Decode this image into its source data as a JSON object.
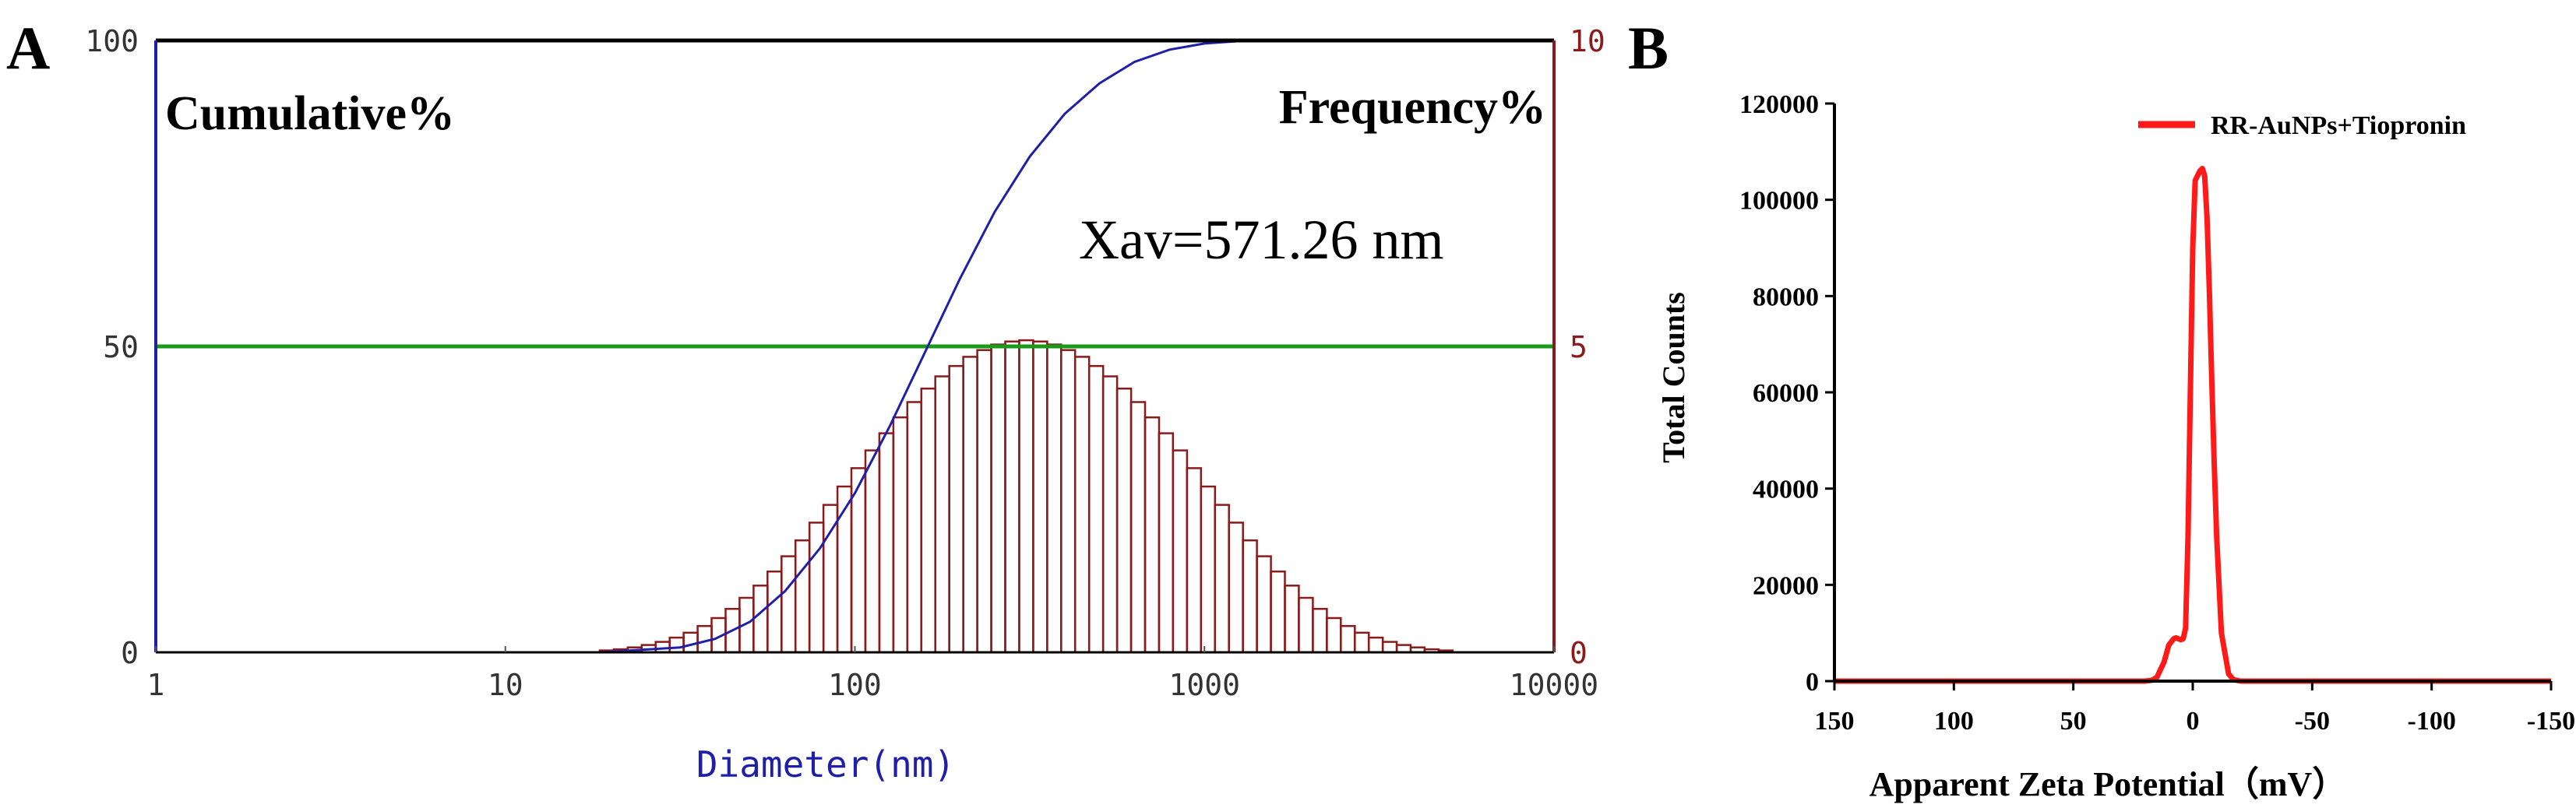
{
  "panels": {
    "a": {
      "letter": "A"
    },
    "b": {
      "letter": "B"
    }
  },
  "chart_data": [
    {
      "type": "bar",
      "panel": "A",
      "title": "",
      "xlabel": "Diameter(nm)",
      "ylabel_left": "Cumulative%",
      "ylabel_right": "Frequency%",
      "annotation": "Xav=571.26 nm",
      "x_scale": "log",
      "xlim": [
        1,
        10000
      ],
      "ylim_left": [
        0,
        100
      ],
      "ylim_right": [
        0,
        10
      ],
      "x_ticks": [
        1,
        10,
        100,
        1000,
        10000
      ],
      "x_tick_labels": [
        "1",
        "10",
        "100",
        "1000",
        "10000"
      ],
      "left_ticks": [
        0,
        50,
        100
      ],
      "left_tick_labels": [
        "0",
        "50",
        "100"
      ],
      "right_ticks": [
        0,
        5,
        10
      ],
      "right_tick_labels": [
        "0",
        "5",
        "10"
      ],
      "reference_line": {
        "axis": "left",
        "value": 50
      },
      "colors": {
        "frame": "#000000",
        "left_axis": "#1f1fa8",
        "right_axis": "#8b1a1a",
        "bars": "#8b1a1a",
        "cumulative": "#1f1fa8",
        "reference": "#1a9a1a",
        "xlabel": "#1f1fa8",
        "tick_left": "#333333",
        "tick_right": "#8b1a1a"
      },
      "histogram": {
        "log10_diameter_start": 1.27,
        "log10_bin_width": 0.04,
        "frequency_percent": [
          0.03,
          0.05,
          0.08,
          0.12,
          0.17,
          0.24,
          0.32,
          0.43,
          0.56,
          0.71,
          0.89,
          1.09,
          1.32,
          1.57,
          1.83,
          2.12,
          2.41,
          2.71,
          3.01,
          3.3,
          3.58,
          3.84,
          4.09,
          4.31,
          4.51,
          4.68,
          4.83,
          4.94,
          5.03,
          5.08,
          5.1,
          5.08,
          5.03,
          4.94,
          4.83,
          4.68,
          4.51,
          4.31,
          4.09,
          3.84,
          3.58,
          3.3,
          3.01,
          2.71,
          2.41,
          2.12,
          1.83,
          1.57,
          1.32,
          1.09,
          0.89,
          0.71,
          0.56,
          0.43,
          0.32,
          0.24,
          0.17,
          0.12,
          0.08,
          0.05,
          0.03
        ]
      },
      "cumulative_series": {
        "name": "Cumulative%",
        "log10_x": [
          1.27,
          1.5,
          1.6,
          1.7,
          1.8,
          1.9,
          2.0,
          2.1,
          2.2,
          2.3,
          2.4,
          2.5,
          2.6,
          2.7,
          2.8,
          2.9,
          3.0,
          3.1,
          3.15
        ],
        "values": [
          0,
          0.8,
          2.2,
          5,
          10,
          17,
          26,
          37,
          49,
          61,
          72,
          81,
          88,
          93,
          96.5,
          98.5,
          99.5,
          99.9,
          100
        ]
      }
    },
    {
      "type": "line",
      "panel": "B",
      "title": "",
      "xlabel": "Apparent Zeta Potential（mV）",
      "ylabel": "Total Counts",
      "xlim": [
        150,
        -150
      ],
      "ylim": [
        0,
        120000
      ],
      "x_ticks": [
        150,
        100,
        50,
        0,
        -50,
        -100,
        -150
      ],
      "x_tick_labels": [
        "150",
        "100",
        "50",
        "0",
        "-50",
        "-100",
        "-150"
      ],
      "y_ticks": [
        0,
        20000,
        40000,
        60000,
        80000,
        100000,
        120000
      ],
      "y_tick_labels": [
        "0",
        "20000",
        "40000",
        "60000",
        "80000",
        "100000",
        "120000"
      ],
      "legend": "top-right",
      "colors": {
        "line": "#ff1a1a",
        "axis": "#000000"
      },
      "series": [
        {
          "name": "RR-AuNPs+Tiopronin",
          "x": [
            150,
            20,
            17,
            15,
            12,
            10,
            8,
            7,
            6,
            5,
            4,
            3,
            2,
            1,
            0,
            -1,
            -2,
            -3,
            -4,
            -5,
            -6,
            -7,
            -8,
            -9,
            -10,
            -12,
            -15,
            -17,
            -20,
            -150
          ],
          "y": [
            0,
            0,
            200,
            800,
            4000,
            7500,
            8800,
            9000,
            8800,
            8600,
            8800,
            11000,
            30000,
            60000,
            90000,
            104000,
            105000,
            106000,
            106500,
            105000,
            96000,
            80000,
            62000,
            45000,
            30000,
            10000,
            1500,
            300,
            0,
            0
          ]
        }
      ]
    }
  ]
}
